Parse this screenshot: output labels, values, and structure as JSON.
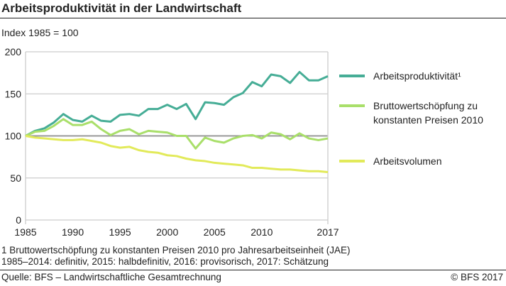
{
  "title": "Arbeitsproduktivität in der Landwirtschaft",
  "subtitle": "Index 1985 = 100",
  "legend": [
    "Arbeitsproduktivität¹",
    "Bruttowertschöpfung zu konstanten Preisen 2010",
    "Arbeitsvolumen"
  ],
  "footnote1": "1   Bruttowertschöpfung zu konstanten Preisen 2010 pro Jahresarbeitseinheit (JAE)",
  "footnote2": "1985–2014: definitiv, 2015: halbdefinitiv, 2016: provisorisch, 2017: Schätzung",
  "source": "Quelle: BFS – Landwirtschaftliche Gesamtrechnung",
  "copyright": "© BFS  2017",
  "chart_data": {
    "type": "line",
    "title": "Arbeitsproduktivität in der Landwirtschaft",
    "ylabel": "Index 1985 = 100",
    "xlim": [
      1985,
      2017
    ],
    "ylim": [
      0,
      200
    ],
    "xticks": [
      1985,
      1990,
      1995,
      2000,
      2005,
      2010,
      2017
    ],
    "yticks": [
      0,
      50,
      100,
      150,
      200
    ],
    "grid": true,
    "legend": "right",
    "x": [
      1985,
      1986,
      1987,
      1988,
      1989,
      1990,
      1991,
      1992,
      1993,
      1994,
      1995,
      1996,
      1997,
      1998,
      1999,
      2000,
      2001,
      2002,
      2003,
      2004,
      2005,
      2006,
      2007,
      2008,
      2009,
      2010,
      2011,
      2012,
      2013,
      2014,
      2015,
      2016,
      2017
    ],
    "series": [
      {
        "name": "Arbeitsproduktivität¹",
        "color": "#46ad96",
        "values": [
          100,
          106,
          109,
          116,
          126,
          119,
          117,
          124,
          118,
          117,
          125,
          126,
          124,
          132,
          132,
          137,
          132,
          138,
          120,
          140,
          139,
          137,
          146,
          151,
          164,
          159,
          173,
          171,
          163,
          176,
          166,
          166,
          171
        ]
      },
      {
        "name": "Bruttowertschöpfung zu konstanten Preisen 2010",
        "color": "#a9df6a",
        "values": [
          100,
          105,
          106,
          112,
          120,
          113,
          113,
          117,
          108,
          101,
          106,
          108,
          102,
          106,
          105,
          104,
          100,
          100,
          85,
          98,
          94,
          92,
          97,
          100,
          101,
          97,
          104,
          102,
          96,
          103,
          97,
          95,
          97
        ]
      },
      {
        "name": "Arbeitsvolumen",
        "color": "#e2ea5a",
        "values": [
          100,
          98,
          97,
          96,
          95,
          95,
          96,
          94,
          92,
          88,
          86,
          87,
          83,
          81,
          80,
          77,
          76,
          73,
          71,
          70,
          68,
          67,
          66,
          65,
          62,
          62,
          61,
          60,
          60,
          59,
          58,
          58,
          57
        ]
      }
    ]
  }
}
